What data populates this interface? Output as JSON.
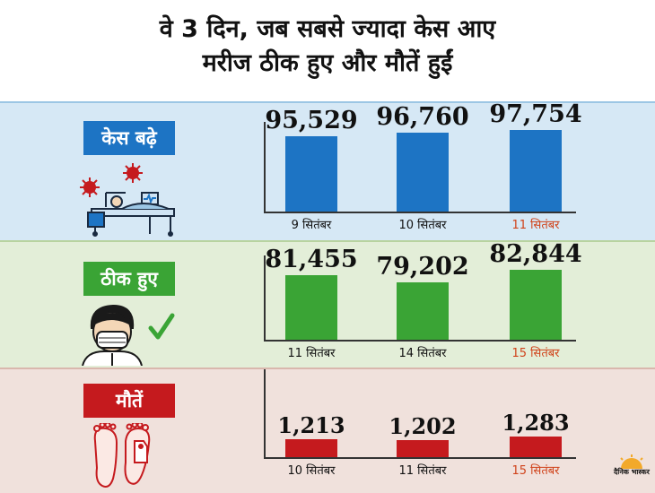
{
  "header": {
    "line1": "वे 3 दिन, जब सबसे ज्यादा केस आए",
    "line2": "मरीज ठीक हुए और मौतें हुईं"
  },
  "colors": {
    "cases": "#1d74c4",
    "recovered": "#3aa435",
    "deaths": "#c51a1e",
    "highlight_date": "#d0431b"
  },
  "logo": {
    "text": "दैनिक भास्कर",
    "icon": "sun-logo-icon"
  },
  "chart_data": [
    {
      "type": "bar",
      "title": "केस बढ़े",
      "categories": [
        "9 सितंबर",
        "10 सितंबर",
        "11 सितंबर"
      ],
      "values": [
        95529,
        96760,
        97754
      ],
      "value_labels": [
        "95,529",
        "96,760",
        "97,754"
      ],
      "highlight_index": 2,
      "icon": "hospital-virus-icon",
      "ylim": [
        0,
        100000
      ]
    },
    {
      "type": "bar",
      "title": "ठीक हुए",
      "categories": [
        "11 सितंबर",
        "14 सितंबर",
        "15 सितंबर"
      ],
      "values": [
        81455,
        79202,
        82844
      ],
      "value_labels": [
        "81,455",
        "79,202",
        "82,844"
      ],
      "highlight_index": 2,
      "icon": "masked-person-check-icon",
      "ylim": [
        0,
        100000
      ]
    },
    {
      "type": "bar",
      "title": "मौतें",
      "categories": [
        "10 सितंबर",
        "11 सितंबर",
        "15 सितंबर"
      ],
      "values": [
        1213,
        1202,
        1283
      ],
      "value_labels": [
        "1,213",
        "1,202",
        "1,283"
      ],
      "highlight_index": 2,
      "icon": "feet-tag-icon",
      "ylim": [
        0,
        5000
      ]
    }
  ]
}
